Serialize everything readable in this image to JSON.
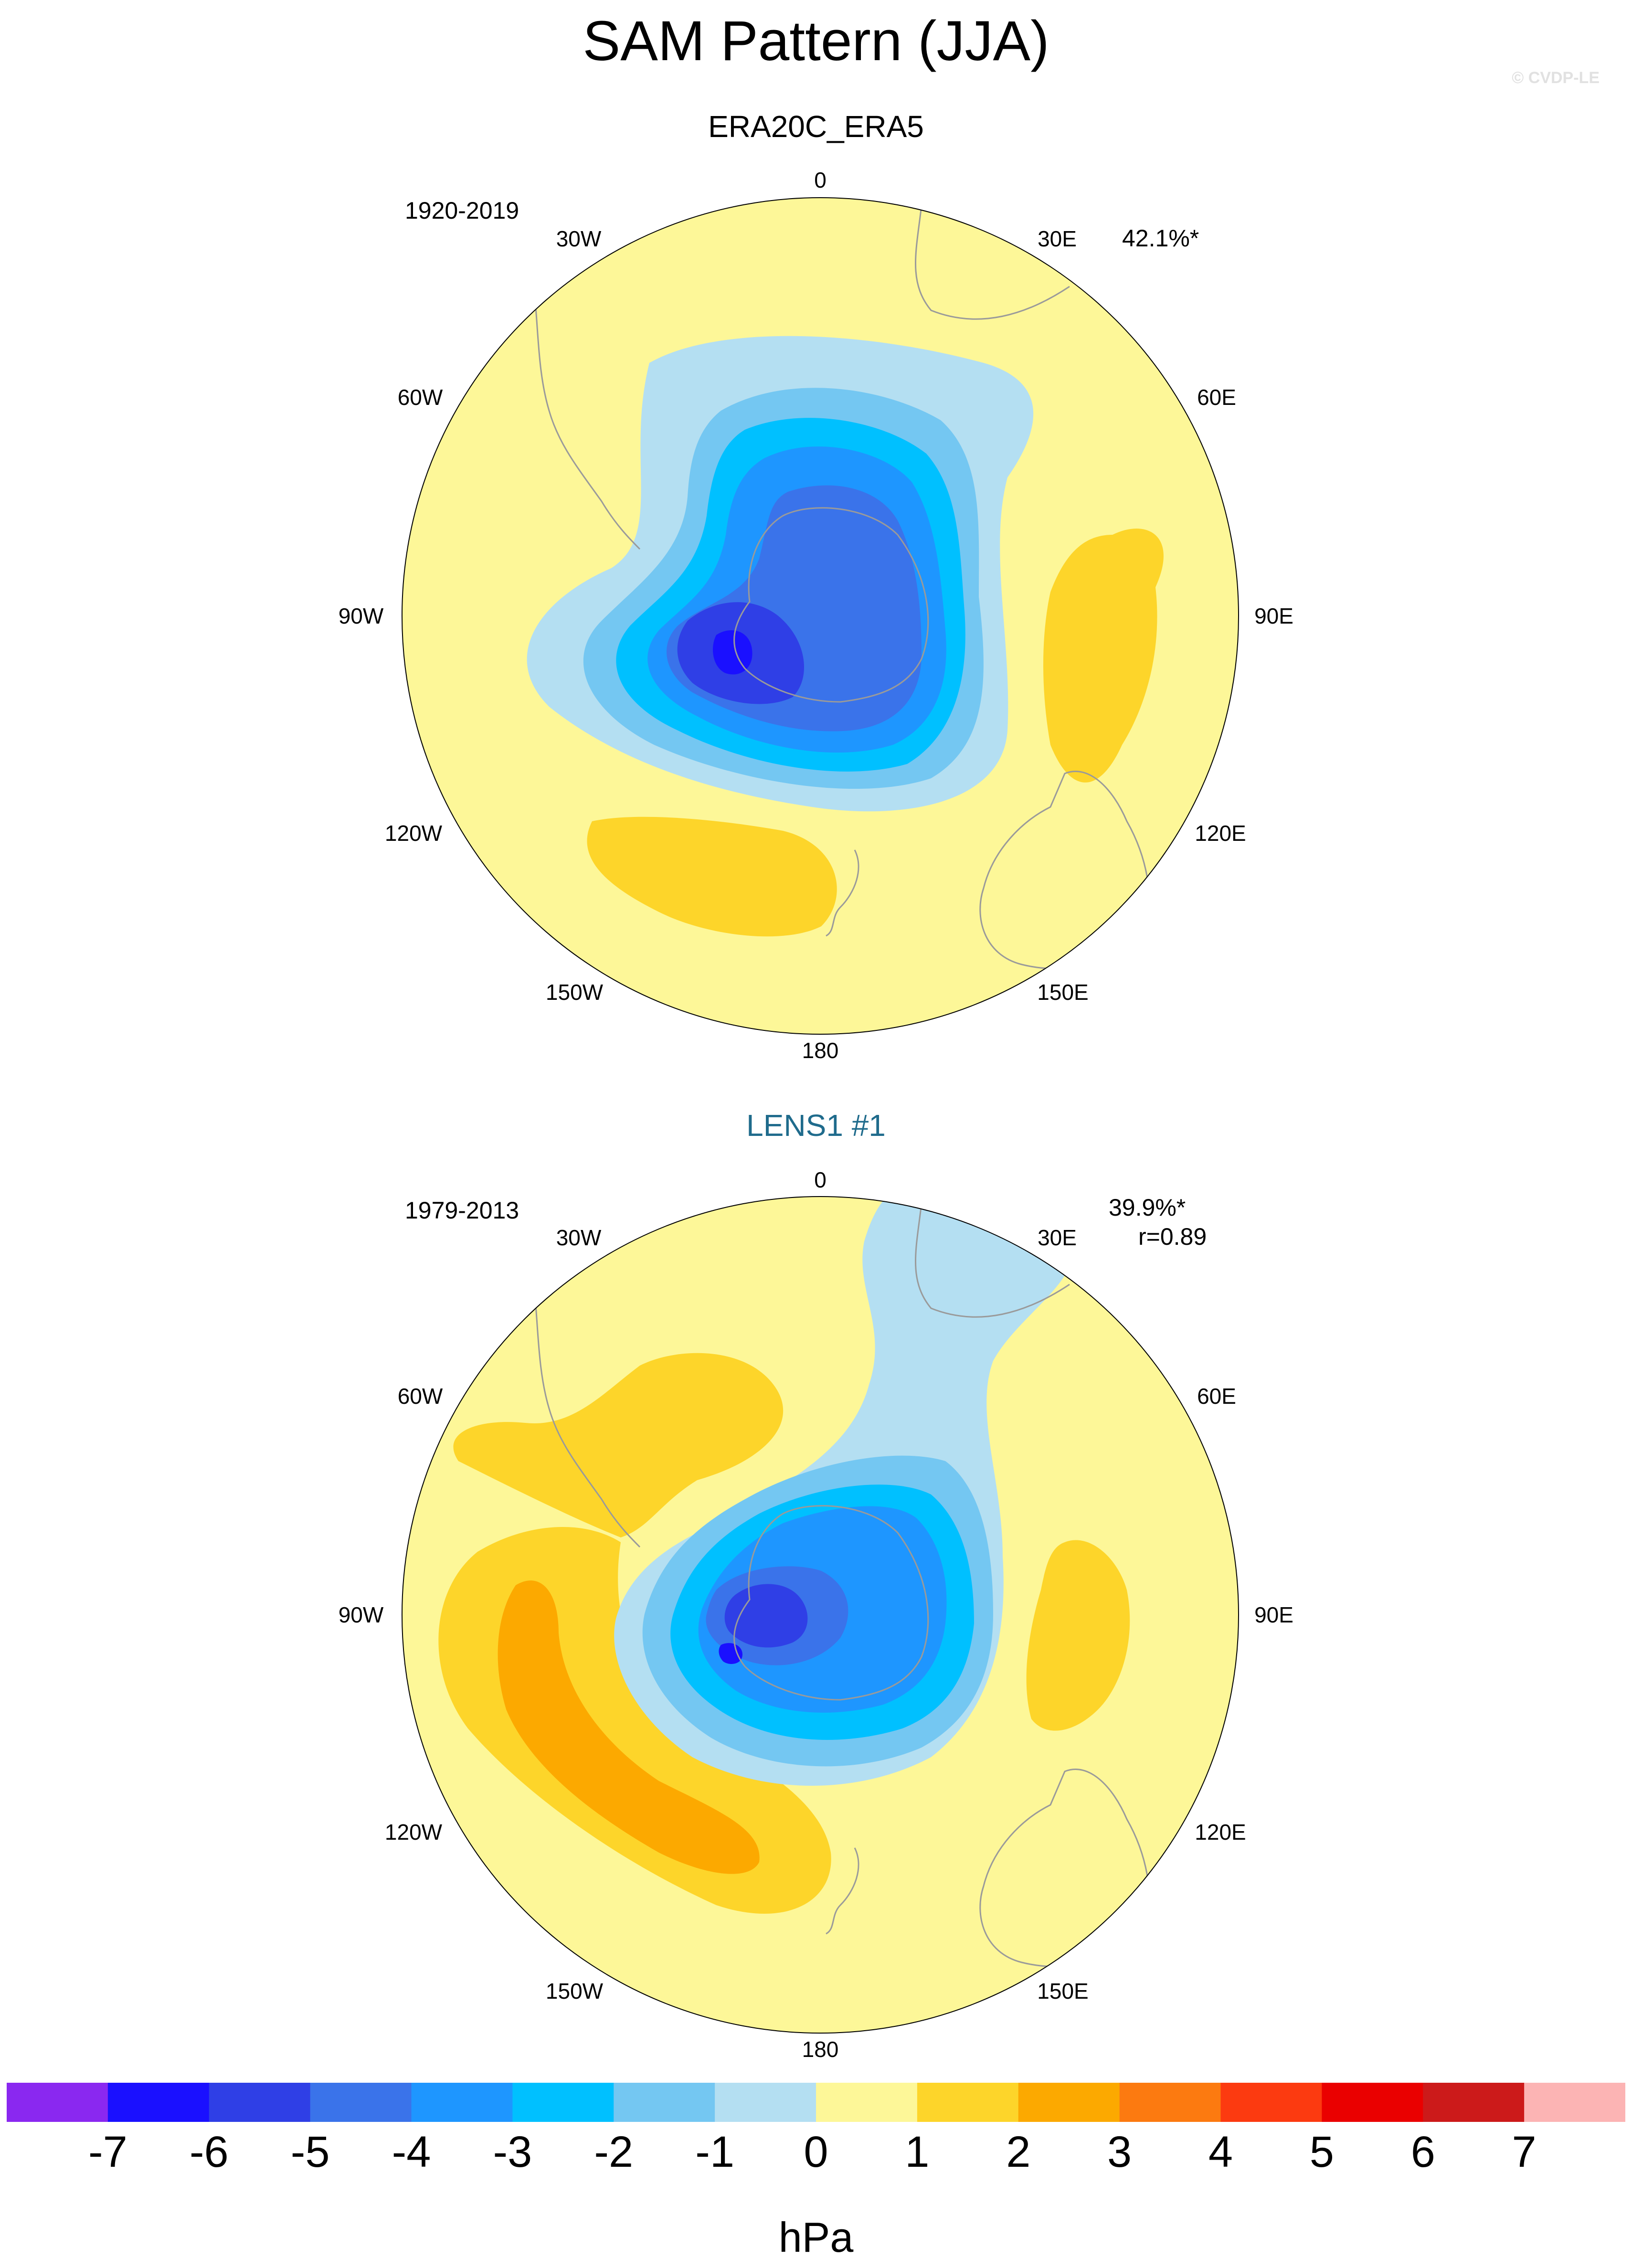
{
  "title": "SAM Pattern (JJA)",
  "copyright": "© CVDP-LE",
  "panels": [
    {
      "title": "ERA20C_ERA5",
      "period": "1920-2019",
      "variance": "42.1%*",
      "correlation": "",
      "lon_labels": [
        "0",
        "30E",
        "60E",
        "90E",
        "120E",
        "150E",
        "180",
        "150W",
        "120W",
        "90W",
        "60W",
        "30W"
      ]
    },
    {
      "title": "LENS1 #1",
      "period": "1979-2013",
      "variance": "39.9%*",
      "correlation": "r=0.89",
      "lon_labels": [
        "0",
        "30E",
        "60E",
        "90E",
        "120E",
        "150E",
        "180",
        "150W",
        "120W",
        "90W",
        "60W",
        "30W"
      ]
    }
  ],
  "colorbar": {
    "units": "hPa",
    "tick_labels": [
      "-7",
      "-6",
      "-5",
      "-4",
      "-3",
      "-2",
      "-1",
      "0",
      "1",
      "2",
      "3",
      "4",
      "5",
      "6",
      "7"
    ],
    "colors": [
      "#8a28f0",
      "#1a10ff",
      "#2f3fe6",
      "#3a73ea",
      "#1e96ff",
      "#00c0ff",
      "#74c7f2",
      "#b4dff2",
      "#fdf798",
      "#fdd52a",
      "#fca900",
      "#fc7a10",
      "#fc3a10",
      "#ea0000",
      "#cc1a1a",
      "#fcb4b4"
    ]
  },
  "colors": {
    "neutral_fill": "#fdf798",
    "panel2_title": "#1f6b8c",
    "coast": "#9a9a9a"
  }
}
